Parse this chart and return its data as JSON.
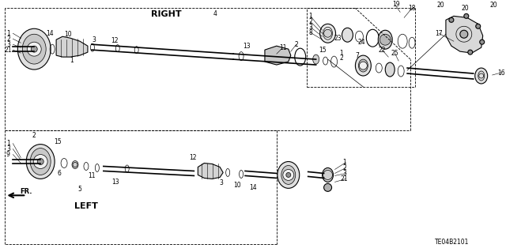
{
  "bg_color": "#ffffff",
  "text_color": "#000000",
  "diagram_code": "TE04B2101",
  "right_label": "RIGHT",
  "left_label": "LEFT",
  "fr_label": "FR.",
  "figsize": [
    6.4,
    3.19
  ],
  "dpi": 100
}
